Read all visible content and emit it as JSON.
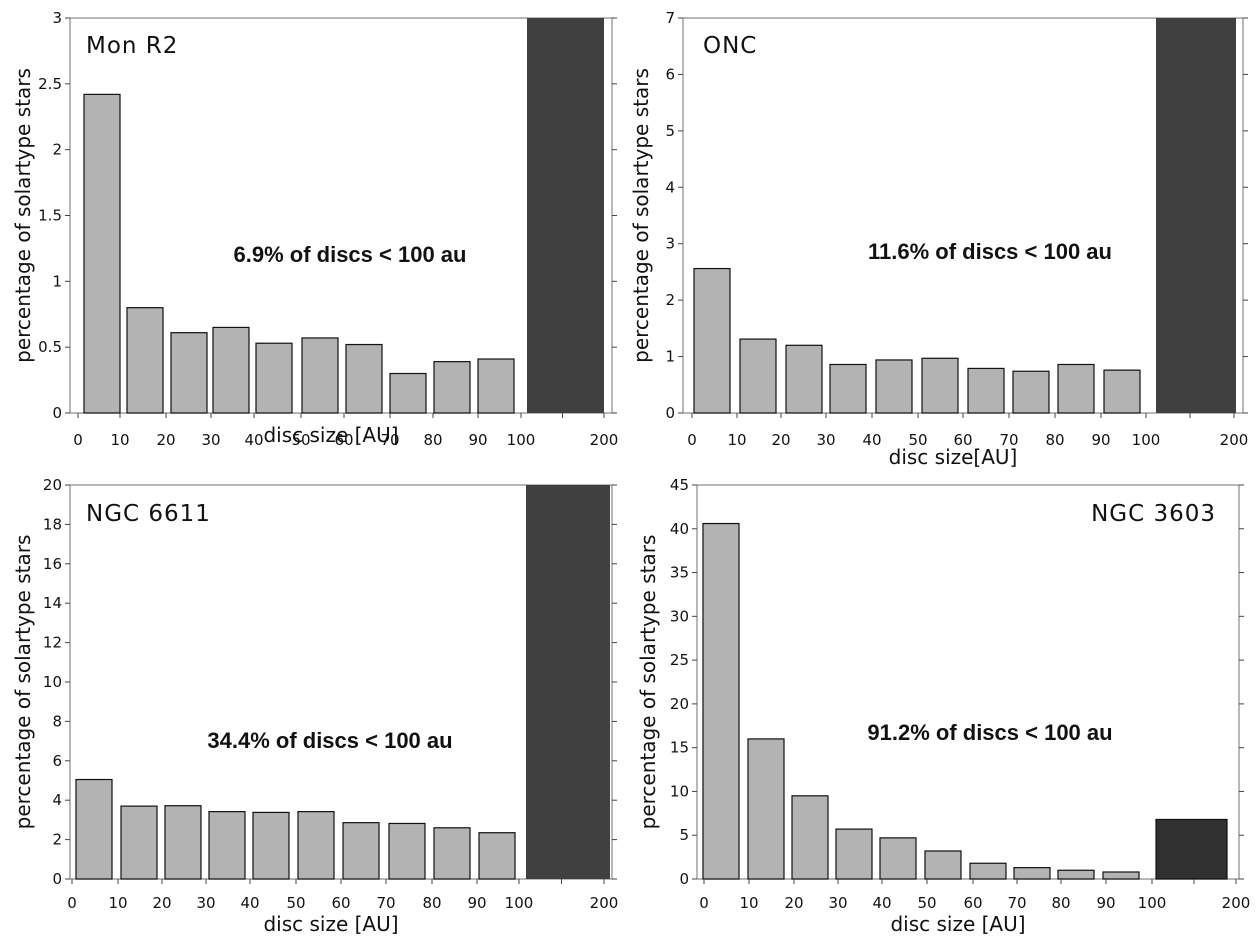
{
  "colors": {
    "bar": "#b3b3b3",
    "big_bar": "#404040",
    "big_bar_ngc3603": "#303030",
    "outline": "#111111"
  },
  "chart_data": [
    {
      "type": "bar",
      "title": "Mon R2",
      "annotation": "6.9% of discs < 100 au",
      "xlabel": "disc size [AU]",
      "ylabel": "percentage of solartype stars",
      "xticks": [
        "0",
        "10",
        "20",
        "30",
        "40",
        "50",
        "60",
        "70",
        "80",
        "90",
        "100",
        "200"
      ],
      "yticks": [
        "0",
        "0.5",
        "1",
        "1.5",
        "2",
        "2.5",
        "3"
      ],
      "ylim": [
        0,
        3
      ],
      "categories": [
        "0-10",
        "10-20",
        "20-30",
        "30-40",
        "40-50",
        "50-60",
        "60-70",
        "70-80",
        "80-90",
        "90-100",
        "100-200"
      ],
      "values": [
        2.42,
        0.8,
        0.61,
        0.65,
        0.53,
        0.57,
        0.52,
        0.3,
        0.39,
        0.41,
        3.0
      ]
    },
    {
      "type": "bar",
      "title": "ONC",
      "annotation": "11.6% of discs < 100 au",
      "xlabel": "disc size[AU]",
      "ylabel": "percentage of solartype stars",
      "xticks": [
        "0",
        "10",
        "20",
        "30",
        "40",
        "50",
        "60",
        "70",
        "80",
        "90",
        "100",
        "200"
      ],
      "yticks": [
        "0",
        "1",
        "2",
        "3",
        "4",
        "5",
        "6",
        "7"
      ],
      "ylim": [
        0,
        7
      ],
      "categories": [
        "0-10",
        "10-20",
        "20-30",
        "30-40",
        "40-50",
        "50-60",
        "60-70",
        "70-80",
        "80-90",
        "90-100",
        "100-200"
      ],
      "values": [
        2.56,
        1.31,
        1.2,
        0.86,
        0.94,
        0.97,
        0.79,
        0.74,
        0.86,
        0.76,
        7.0
      ]
    },
    {
      "type": "bar",
      "title": "NGC 6611",
      "annotation": "34.4% of discs < 100 au",
      "xlabel": "disc size [AU]",
      "ylabel": "percentage of solartype stars",
      "xticks": [
        "0",
        "10",
        "20",
        "30",
        "40",
        "50",
        "60",
        "70",
        "80",
        "90",
        "100",
        "200"
      ],
      "yticks": [
        "0",
        "2",
        "4",
        "6",
        "8",
        "10",
        "12",
        "14",
        "16",
        "18",
        "20"
      ],
      "ylim": [
        0,
        20
      ],
      "categories": [
        "0-10",
        "10-20",
        "20-30",
        "30-40",
        "40-50",
        "50-60",
        "60-70",
        "70-80",
        "80-90",
        "90-100",
        "100-200"
      ],
      "values": [
        5.05,
        3.7,
        3.72,
        3.42,
        3.38,
        3.42,
        2.86,
        2.82,
        2.6,
        2.35,
        20.0
      ]
    },
    {
      "type": "bar",
      "title": "NGC 3603",
      "annotation": "91.2% of discs < 100 au",
      "xlabel": "disc size [AU]",
      "ylabel": "percentage of solartype stars",
      "xticks": [
        "0",
        "10",
        "20",
        "30",
        "40",
        "50",
        "60",
        "70",
        "80",
        "90",
        "100",
        "200"
      ],
      "yticks": [
        "0",
        "5",
        "10",
        "15",
        "20",
        "25",
        "30",
        "35",
        "40",
        "45"
      ],
      "ylim": [
        0,
        45
      ],
      "categories": [
        "0-10",
        "10-20",
        "20-30",
        "30-40",
        "40-50",
        "50-60",
        "60-70",
        "70-80",
        "80-90",
        "90-100",
        "100-200"
      ],
      "values": [
        40.6,
        16.0,
        9.5,
        5.7,
        4.7,
        3.2,
        1.8,
        1.3,
        1.0,
        0.8,
        6.8
      ]
    }
  ]
}
